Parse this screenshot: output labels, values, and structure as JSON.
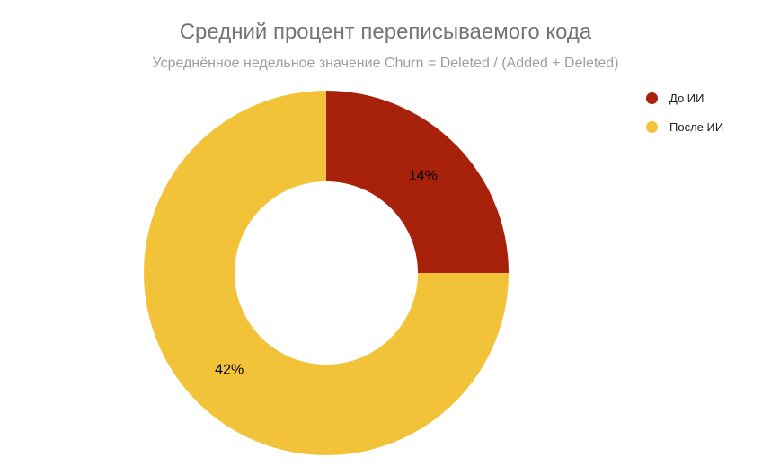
{
  "page": {
    "title": "Средний процент переписываемого кода",
    "subtitle": "Усреднённое недельное значение Churn = Deleted / (Added + Deleted)"
  },
  "chart_data": {
    "type": "pie",
    "subtype": "donut",
    "hole_ratio": 0.5,
    "title": "Средний процент переписываемого кода",
    "subtitle": "Усреднённое недельное значение Churn = Deleted / (Added + Deleted)",
    "categories": [
      "До ИИ",
      "После ИИ"
    ],
    "values": [
      14,
      42
    ],
    "value_labels": [
      "14%",
      "42%"
    ],
    "unit": "%",
    "colors": [
      "#a8220b",
      "#f2c338"
    ],
    "start_angle_deg": 0,
    "direction": "clockwise",
    "legend_position": "top-right",
    "label_color": "#000000",
    "title_color": "#757575",
    "subtitle_color": "#9e9e9e",
    "legend_text_color": "#212121",
    "background": "#ffffff"
  },
  "legend": {
    "items": [
      {
        "label": "До ИИ",
        "color": "#a8220b"
      },
      {
        "label": "После ИИ",
        "color": "#f2c338"
      }
    ]
  }
}
